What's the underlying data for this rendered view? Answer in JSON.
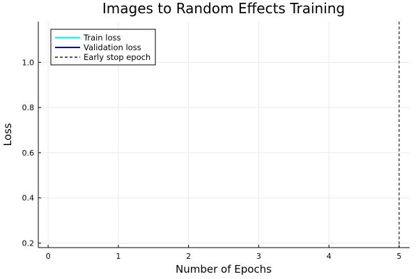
{
  "chart_data": {
    "type": "line",
    "title": "Images to Random Effects Training",
    "xlabel": "Number of Epochs",
    "ylabel": "Loss",
    "xlim": [
      -0.14,
      5.15
    ],
    "ylim": [
      0.18,
      1.18
    ],
    "x_ticks": [
      0,
      1,
      2,
      3,
      4,
      5
    ],
    "x_tick_labels": [
      "0",
      "1",
      "2",
      "3",
      "4",
      "5"
    ],
    "y_ticks": [
      0.2,
      0.4,
      0.6,
      0.8,
      1.0
    ],
    "y_tick_labels": [
      "0.2",
      "0.4",
      "0.6",
      "0.8",
      "1.0"
    ],
    "grid": true,
    "legend_position": "top-left",
    "series": [
      {
        "name": "Train loss",
        "color": "#00ffff",
        "style": "solid",
        "x": [],
        "y": []
      },
      {
        "name": "Validation loss",
        "color": "#0000ff",
        "style": "solid",
        "x": [],
        "y": []
      },
      {
        "name": "Early stop epoch",
        "color": "#555555",
        "style": "dashed",
        "vline_x": 5
      }
    ]
  }
}
